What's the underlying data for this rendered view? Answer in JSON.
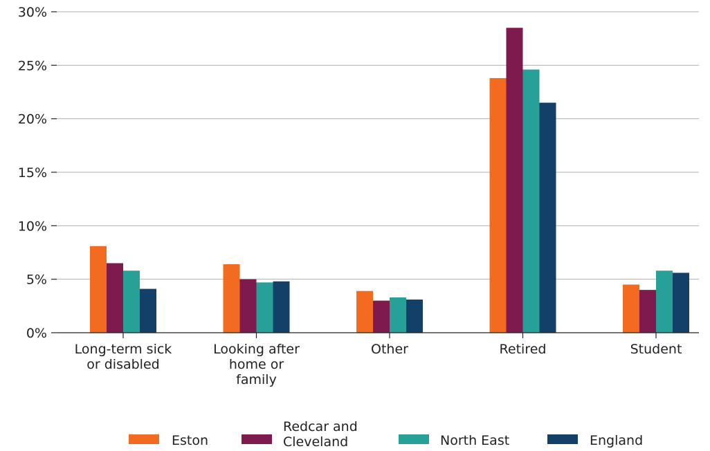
{
  "chart_data": {
    "type": "bar",
    "categories": [
      [
        "Long-term sick",
        "or disabled"
      ],
      [
        "Looking after",
        "home or",
        "family"
      ],
      [
        "Other"
      ],
      [
        "Retired"
      ],
      [
        "Student"
      ]
    ],
    "series": [
      {
        "name": "Eston",
        "color": "#f26b21",
        "values": [
          8.1,
          6.4,
          3.9,
          23.8,
          4.5
        ]
      },
      {
        "name": "Redcar and Cleveland",
        "color": "#7e1a4e",
        "values": [
          6.5,
          5.0,
          3.0,
          28.5,
          4.0
        ]
      },
      {
        "name": "North East",
        "color": "#27a197",
        "values": [
          5.8,
          4.7,
          3.3,
          24.6,
          5.8
        ]
      },
      {
        "name": "England",
        "color": "#124069",
        "values": [
          4.1,
          4.8,
          3.1,
          21.5,
          5.6
        ]
      }
    ],
    "legend_labels": [
      [
        "Eston"
      ],
      [
        "Redcar and",
        "Cleveland"
      ],
      [
        "North East"
      ],
      [
        "England"
      ]
    ],
    "yticks": [
      0,
      5,
      10,
      15,
      20,
      25,
      30
    ],
    "ytick_labels": [
      "0%",
      "5%",
      "10%",
      "15%",
      "20%",
      "25%",
      "30%"
    ],
    "ylim": [
      0,
      30
    ],
    "grid": "horizontal",
    "legend_position": "bottom",
    "grid_color": "#b0b0b0",
    "axis_color": "#222222"
  }
}
